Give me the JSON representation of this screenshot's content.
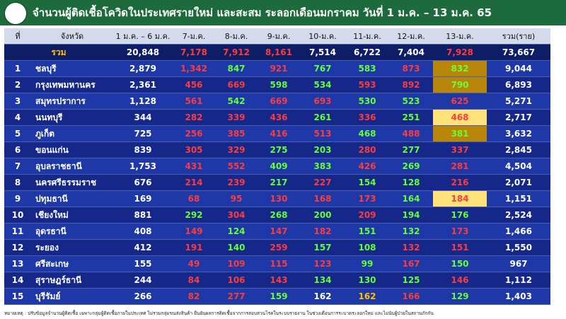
{
  "header": {
    "title": "จำนวนผู้ติดเชื้อโควิดในประเทศรายใหม่ และสะสม ระลอกเดือนมกราคม วันที่ 1 ม.ค. – 13 ม.ค. 65"
  },
  "table": {
    "columns": [
      "ที่",
      "จังหวัด",
      "1 ม.ค. – 6 ม.ค.",
      "7-ม.ค.",
      "8-ม.ค.",
      "9-ม.ค.",
      "10-ม.ค.",
      "11-ม.ค.",
      "12-ม.ค.",
      "13-ม.ค.",
      "รวม(ราย)"
    ],
    "total": {
      "cells": [
        "รวม",
        "20,848",
        "7,178",
        "7,912",
        "8,161",
        "7,514",
        "6,722",
        "7,404",
        "7,928",
        "73,667"
      ],
      "colors": [
        "#ff3b3b",
        "#ff3b3b",
        "#ff3b3b",
        "#ffffff",
        "#ffffff",
        "#ffffff",
        "#ff3b3b"
      ]
    },
    "rows": [
      {
        "cells": [
          "1",
          "ชลบุรี",
          "2,879",
          "1,342",
          "847",
          "921",
          "767",
          "583",
          "873",
          "832",
          "9,044"
        ],
        "colors": [
          "#ff3b3b",
          "#66ff33",
          "#ff3b3b",
          "#66ff33",
          "#66ff33",
          "#ff3b3b",
          "#66ff33"
        ],
        "highlight": "#b8860b"
      },
      {
        "cells": [
          "2",
          "กรุงเทพมหานคร",
          "2,361",
          "456",
          "669",
          "598",
          "534",
          "593",
          "892",
          "790",
          "6,893"
        ],
        "colors": [
          "#ff3b3b",
          "#ff3b3b",
          "#66ff33",
          "#66ff33",
          "#ff3b3b",
          "#ff3b3b",
          "#66ff33"
        ],
        "highlight": "#b8860b"
      },
      {
        "cells": [
          "3",
          "สมุทรปราการ",
          "1,128",
          "561",
          "542",
          "669",
          "693",
          "530",
          "523",
          "625",
          "5,271"
        ],
        "colors": [
          "#ff3b3b",
          "#66ff33",
          "#ff3b3b",
          "#ff3b3b",
          "#66ff33",
          "#66ff33",
          "#ff3b3b"
        ]
      },
      {
        "cells": [
          "4",
          "นนทบุรี",
          "344",
          "282",
          "339",
          "436",
          "261",
          "336",
          "251",
          "468",
          "2,717"
        ],
        "colors": [
          "#ff3b3b",
          "#ff3b3b",
          "#ff3b3b",
          "#66ff33",
          "#ff3b3b",
          "#66ff33",
          "#ff3b3b"
        ],
        "highlight": "#ffe27a"
      },
      {
        "cells": [
          "5",
          "ภูเก็ต",
          "725",
          "256",
          "385",
          "416",
          "513",
          "468",
          "488",
          "381",
          "3,632"
        ],
        "colors": [
          "#ff3b3b",
          "#ff3b3b",
          "#ff3b3b",
          "#ff3b3b",
          "#66ff33",
          "#ff3b3b",
          "#66ff33"
        ],
        "highlight": "#b8860b"
      },
      {
        "cells": [
          "6",
          "ขอนแก่น",
          "839",
          "305",
          "329",
          "275",
          "203",
          "280",
          "277",
          "337",
          "2,845"
        ],
        "colors": [
          "#ff3b3b",
          "#ff3b3b",
          "#66ff33",
          "#66ff33",
          "#ff3b3b",
          "#66ff33",
          "#ff3b3b"
        ]
      },
      {
        "cells": [
          "7",
          "อุบลราชธานี",
          "1,753",
          "431",
          "552",
          "409",
          "383",
          "426",
          "269",
          "281",
          "4,504"
        ],
        "colors": [
          "#ff3b3b",
          "#ff3b3b",
          "#66ff33",
          "#66ff33",
          "#ff3b3b",
          "#66ff33",
          "#ff3b3b"
        ]
      },
      {
        "cells": [
          "8",
          "นครศรีธรรมราช",
          "676",
          "214",
          "239",
          "217",
          "227",
          "154",
          "128",
          "216",
          "2,071"
        ],
        "colors": [
          "#ff3b3b",
          "#ff3b3b",
          "#66ff33",
          "#ff3b3b",
          "#66ff33",
          "#66ff33",
          "#ff3b3b"
        ]
      },
      {
        "cells": [
          "9",
          "ปทุมธานี",
          "169",
          "68",
          "95",
          "130",
          "168",
          "173",
          "164",
          "184",
          "1,151"
        ],
        "colors": [
          "#ff3b3b",
          "#ff3b3b",
          "#ff3b3b",
          "#ff3b3b",
          "#ff3b3b",
          "#66ff33",
          "#ff3b3b"
        ],
        "highlight": "#ffe27a"
      },
      {
        "cells": [
          "10",
          "เชียงใหม่",
          "881",
          "292",
          "304",
          "268",
          "200",
          "209",
          "194",
          "176",
          "2,524"
        ],
        "colors": [
          "#66ff33",
          "#ff3b3b",
          "#66ff33",
          "#66ff33",
          "#ff3b3b",
          "#66ff33",
          "#66ff33"
        ]
      },
      {
        "cells": [
          "11",
          "อุดรธานี",
          "408",
          "149",
          "124",
          "147",
          "182",
          "151",
          "132",
          "173",
          "1,466"
        ],
        "colors": [
          "#ff3b3b",
          "#66ff33",
          "#ff3b3b",
          "#ff3b3b",
          "#66ff33",
          "#66ff33",
          "#ff3b3b"
        ]
      },
      {
        "cells": [
          "12",
          "ระยอง",
          "412",
          "191",
          "140",
          "259",
          "157",
          "108",
          "132",
          "151",
          "1,550"
        ],
        "colors": [
          "#ff3b3b",
          "#66ff33",
          "#ff3b3b",
          "#66ff33",
          "#66ff33",
          "#ff3b3b",
          "#ff3b3b"
        ]
      },
      {
        "cells": [
          "13",
          "ศรีสะเกษ",
          "155",
          "49",
          "109",
          "115",
          "123",
          "99",
          "167",
          "150",
          "967"
        ],
        "colors": [
          "#ff3b3b",
          "#ff3b3b",
          "#ff3b3b",
          "#ff3b3b",
          "#66ff33",
          "#ff3b3b",
          "#66ff33"
        ]
      },
      {
        "cells": [
          "14",
          "สุราษฎร์ธานี",
          "244",
          "84",
          "106",
          "143",
          "134",
          "130",
          "125",
          "146",
          "1,112"
        ],
        "colors": [
          "#ff3b3b",
          "#ff3b3b",
          "#ff3b3b",
          "#66ff33",
          "#66ff33",
          "#66ff33",
          "#ff3b3b"
        ]
      },
      {
        "cells": [
          "15",
          "บุรีรัมย์",
          "266",
          "82",
          "277",
          "159",
          "162",
          "162",
          "166",
          "129",
          "1,403"
        ],
        "colors": [
          "#ff3b3b",
          "#ff3b3b",
          "#66ff33",
          "#ffffff",
          "#ffc000",
          "#ff3b3b",
          "#66ff33"
        ]
      }
    ]
  },
  "footer": {
    "note": "หมายเหตุ : ปรับข้อมูลจำนวนผู้ติดเชื้อ เฉพาะกลุ่มผู้ติดเชื้อภายในประเทศ ไม่รวมกลุ่มขนส่งสินค้า ยืนยันผลการติดเชื้อจากการสอบสวนโรคในระบบรายงาน ในช่วงเดือนการระบาดระลอกใหม่ และไม่นับผู้ป่วยในสถานกักกัน"
  }
}
